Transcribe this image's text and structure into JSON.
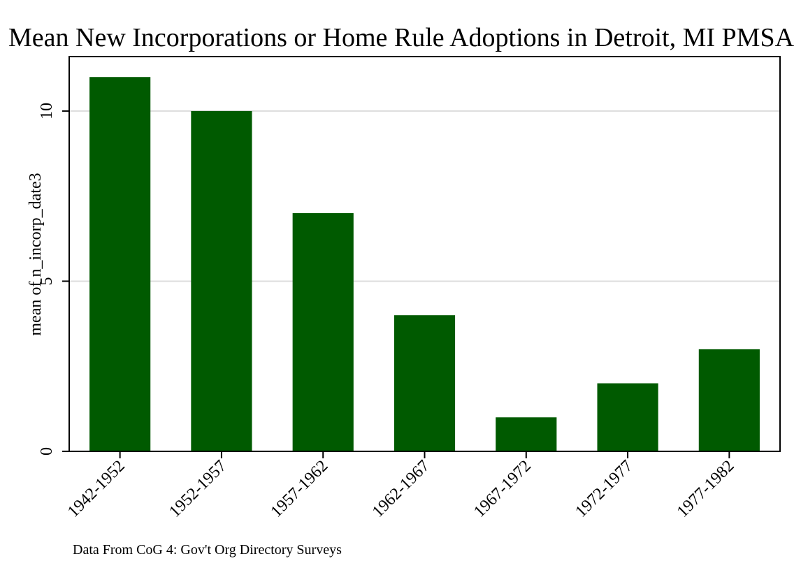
{
  "chart_data": {
    "type": "bar",
    "title": "Mean New Incorporations or Home Rule Adoptions in Detroit, MI PMSA",
    "xlabel": "",
    "ylabel": "mean of n_incorp_date3",
    "note": "Data From CoG 4: Gov't Org Directory Surveys",
    "categories": [
      "1942-1952",
      "1952-1957",
      "1957-1962",
      "1962-1967",
      "1967-1972",
      "1972-1977",
      "1977-1982"
    ],
    "values": [
      11,
      10,
      7,
      4,
      1,
      2,
      3
    ],
    "ylim": [
      0,
      11.6
    ],
    "yticks": [
      0,
      5,
      10
    ],
    "grid": true,
    "colors": {
      "bar": "#005a00",
      "grid": "#dcdcdc",
      "axis": "#000000"
    }
  }
}
